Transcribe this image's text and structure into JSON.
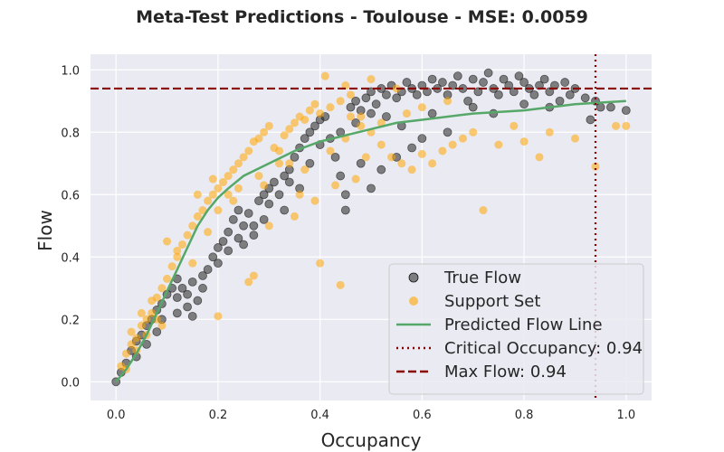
{
  "chart_data": {
    "type": "scatter",
    "title": "Meta-Test Predictions - Toulouse - MSE: 0.0059",
    "xlabel": "Occupancy",
    "ylabel": "Flow",
    "xlim": [
      -0.05,
      1.05
    ],
    "ylim": [
      -0.06,
      1.05
    ],
    "xticks": [
      0.0,
      0.2,
      0.4,
      0.6,
      0.8,
      1.0
    ],
    "yticks": [
      0.0,
      0.2,
      0.4,
      0.6,
      0.8,
      1.0
    ],
    "xtick_labels": [
      "0.0",
      "0.2",
      "0.4",
      "0.6",
      "0.8",
      "1.0"
    ],
    "ytick_labels": [
      "0.0",
      "0.2",
      "0.4",
      "0.6",
      "0.8",
      "1.0"
    ],
    "grid": true,
    "legend_position": "lower-right",
    "series": [
      {
        "name": "True Flow",
        "kind": "scatter",
        "color": "#333333",
        "points": [
          [
            0.0,
            0.0
          ],
          [
            0.01,
            0.03
          ],
          [
            0.02,
            0.06
          ],
          [
            0.03,
            0.1
          ],
          [
            0.04,
            0.13
          ],
          [
            0.05,
            0.15
          ],
          [
            0.06,
            0.18
          ],
          [
            0.07,
            0.2
          ],
          [
            0.08,
            0.23
          ],
          [
            0.09,
            0.25
          ],
          [
            0.1,
            0.28
          ],
          [
            0.11,
            0.3
          ],
          [
            0.12,
            0.33
          ],
          [
            0.13,
            0.3
          ],
          [
            0.14,
            0.28
          ],
          [
            0.15,
            0.32
          ],
          [
            0.16,
            0.26
          ],
          [
            0.17,
            0.3
          ],
          [
            0.14,
            0.24
          ],
          [
            0.12,
            0.27
          ],
          [
            0.18,
            0.36
          ],
          [
            0.19,
            0.4
          ],
          [
            0.2,
            0.43
          ],
          [
            0.21,
            0.45
          ],
          [
            0.22,
            0.48
          ],
          [
            0.23,
            0.52
          ],
          [
            0.24,
            0.55
          ],
          [
            0.25,
            0.5
          ],
          [
            0.26,
            0.54
          ],
          [
            0.27,
            0.47
          ],
          [
            0.28,
            0.58
          ],
          [
            0.29,
            0.6
          ],
          [
            0.3,
            0.62
          ],
          [
            0.31,
            0.64
          ],
          [
            0.32,
            0.6
          ],
          [
            0.33,
            0.66
          ],
          [
            0.34,
            0.68
          ],
          [
            0.35,
            0.72
          ],
          [
            0.36,
            0.75
          ],
          [
            0.37,
            0.78
          ],
          [
            0.38,
            0.8
          ],
          [
            0.39,
            0.82
          ],
          [
            0.4,
            0.84
          ],
          [
            0.41,
            0.85
          ],
          [
            0.42,
            0.78
          ],
          [
            0.43,
            0.72
          ],
          [
            0.44,
            0.66
          ],
          [
            0.45,
            0.6
          ],
          [
            0.46,
            0.88
          ],
          [
            0.47,
            0.9
          ],
          [
            0.48,
            0.87
          ],
          [
            0.49,
            0.91
          ],
          [
            0.5,
            0.93
          ],
          [
            0.51,
            0.89
          ],
          [
            0.52,
            0.94
          ],
          [
            0.53,
            0.92
          ],
          [
            0.54,
            0.95
          ],
          [
            0.55,
            0.91
          ],
          [
            0.56,
            0.93
          ],
          [
            0.57,
            0.96
          ],
          [
            0.58,
            0.94
          ],
          [
            0.59,
            0.92
          ],
          [
            0.6,
            0.95
          ],
          [
            0.61,
            0.93
          ],
          [
            0.62,
            0.97
          ],
          [
            0.63,
            0.94
          ],
          [
            0.64,
            0.96
          ],
          [
            0.65,
            0.92
          ],
          [
            0.66,
            0.95
          ],
          [
            0.67,
            0.98
          ],
          [
            0.68,
            0.94
          ],
          [
            0.69,
            0.9
          ],
          [
            0.7,
            0.97
          ],
          [
            0.71,
            0.93
          ],
          [
            0.72,
            0.96
          ],
          [
            0.73,
            0.99
          ],
          [
            0.74,
            0.94
          ],
          [
            0.75,
            0.92
          ],
          [
            0.76,
            0.97
          ],
          [
            0.77,
            0.95
          ],
          [
            0.78,
            0.93
          ],
          [
            0.79,
            0.98
          ],
          [
            0.8,
            0.96
          ],
          [
            0.81,
            0.94
          ],
          [
            0.82,
            0.92
          ],
          [
            0.83,
            0.95
          ],
          [
            0.84,
            0.97
          ],
          [
            0.85,
            0.93
          ],
          [
            0.86,
            0.95
          ],
          [
            0.87,
            0.9
          ],
          [
            0.88,
            0.96
          ],
          [
            0.89,
            0.92
          ],
          [
            0.9,
            0.94
          ],
          [
            0.92,
            0.91
          ],
          [
            0.94,
            0.9
          ],
          [
            0.95,
            0.88
          ],
          [
            0.97,
            0.88
          ],
          [
            1.0,
            0.87
          ],
          [
            0.93,
            0.84
          ],
          [
            0.6,
            0.78
          ],
          [
            0.65,
            0.8
          ],
          [
            0.58,
            0.75
          ],
          [
            0.48,
            0.7
          ],
          [
            0.52,
            0.68
          ],
          [
            0.45,
            0.55
          ],
          [
            0.5,
            0.62
          ],
          [
            0.55,
            0.72
          ],
          [
            0.25,
            0.44
          ],
          [
            0.2,
            0.38
          ],
          [
            0.27,
            0.5
          ],
          [
            0.33,
            0.55
          ],
          [
            0.36,
            0.62
          ],
          [
            0.29,
            0.52
          ],
          [
            0.12,
            0.22
          ],
          [
            0.06,
            0.12
          ],
          [
            0.04,
            0.08
          ],
          [
            0.08,
            0.16
          ],
          [
            0.09,
            0.2
          ],
          [
            0.15,
            0.21
          ],
          [
            0.17,
            0.34
          ],
          [
            0.22,
            0.42
          ],
          [
            0.24,
            0.46
          ],
          [
            0.3,
            0.57
          ],
          [
            0.34,
            0.64
          ],
          [
            0.38,
            0.7
          ],
          [
            0.4,
            0.76
          ],
          [
            0.44,
            0.8
          ],
          [
            0.47,
            0.83
          ],
          [
            0.5,
            0.86
          ],
          [
            0.53,
            0.85
          ],
          [
            0.56,
            0.82
          ],
          [
            0.62,
            0.86
          ],
          [
            0.7,
            0.88
          ],
          [
            0.74,
            0.86
          ],
          [
            0.8,
            0.89
          ],
          [
            0.85,
            0.88
          ]
        ]
      },
      {
        "name": "Support Set",
        "kind": "scatter",
        "color": "#ffa500",
        "points": [
          [
            0.01,
            0.05
          ],
          [
            0.02,
            0.09
          ],
          [
            0.03,
            0.12
          ],
          [
            0.04,
            0.14
          ],
          [
            0.05,
            0.18
          ],
          [
            0.06,
            0.2
          ],
          [
            0.07,
            0.22
          ],
          [
            0.08,
            0.27
          ],
          [
            0.09,
            0.3
          ],
          [
            0.1,
            0.33
          ],
          [
            0.11,
            0.37
          ],
          [
            0.12,
            0.4
          ],
          [
            0.13,
            0.44
          ],
          [
            0.14,
            0.47
          ],
          [
            0.15,
            0.5
          ],
          [
            0.16,
            0.53
          ],
          [
            0.17,
            0.55
          ],
          [
            0.18,
            0.58
          ],
          [
            0.19,
            0.6
          ],
          [
            0.2,
            0.62
          ],
          [
            0.21,
            0.64
          ],
          [
            0.22,
            0.66
          ],
          [
            0.23,
            0.68
          ],
          [
            0.24,
            0.7
          ],
          [
            0.25,
            0.72
          ],
          [
            0.26,
            0.74
          ],
          [
            0.27,
            0.77
          ],
          [
            0.28,
            0.78
          ],
          [
            0.29,
            0.8
          ],
          [
            0.3,
            0.82
          ],
          [
            0.31,
            0.75
          ],
          [
            0.32,
            0.7
          ],
          [
            0.33,
            0.79
          ],
          [
            0.34,
            0.81
          ],
          [
            0.35,
            0.83
          ],
          [
            0.36,
            0.85
          ],
          [
            0.37,
            0.84
          ],
          [
            0.38,
            0.87
          ],
          [
            0.39,
            0.89
          ],
          [
            0.4,
            0.86
          ],
          [
            0.42,
            0.88
          ],
          [
            0.44,
            0.9
          ],
          [
            0.46,
            0.85
          ],
          [
            0.48,
            0.82
          ],
          [
            0.5,
            0.8
          ],
          [
            0.52,
            0.76
          ],
          [
            0.54,
            0.72
          ],
          [
            0.56,
            0.7
          ],
          [
            0.58,
            0.68
          ],
          [
            0.6,
            0.73
          ],
          [
            0.62,
            0.7
          ],
          [
            0.64,
            0.74
          ],
          [
            0.66,
            0.76
          ],
          [
            0.68,
            0.78
          ],
          [
            0.7,
            0.8
          ],
          [
            0.72,
            0.55
          ],
          [
            0.75,
            0.76
          ],
          [
            0.78,
            0.82
          ],
          [
            0.8,
            0.77
          ],
          [
            0.83,
            0.72
          ],
          [
            0.85,
            0.8
          ],
          [
            0.9,
            0.78
          ],
          [
            0.94,
            0.69
          ],
          [
            0.98,
            0.82
          ],
          [
            1.0,
            0.82
          ],
          [
            0.44,
            0.31
          ],
          [
            0.4,
            0.38
          ],
          [
            0.35,
            0.53
          ],
          [
            0.2,
            0.21
          ],
          [
            0.26,
            0.32
          ],
          [
            0.27,
            0.34
          ],
          [
            0.3,
            0.5
          ],
          [
            0.36,
            0.6
          ],
          [
            0.39,
            0.58
          ],
          [
            0.43,
            0.63
          ],
          [
            0.47,
            0.65
          ],
          [
            0.49,
            0.72
          ],
          [
            0.41,
            0.98
          ],
          [
            0.45,
            0.95
          ],
          [
            0.46,
            0.92
          ],
          [
            0.5,
            0.97
          ],
          [
            0.55,
            0.94
          ],
          [
            0.6,
            0.88
          ],
          [
            0.65,
            0.9
          ],
          [
            0.1,
            0.45
          ],
          [
            0.12,
            0.42
          ],
          [
            0.15,
            0.38
          ],
          [
            0.18,
            0.48
          ],
          [
            0.2,
            0.55
          ],
          [
            0.22,
            0.6
          ],
          [
            0.24,
            0.62
          ],
          [
            0.28,
            0.66
          ],
          [
            0.32,
            0.74
          ],
          [
            0.34,
            0.7
          ],
          [
            0.37,
            0.68
          ],
          [
            0.42,
            0.74
          ],
          [
            0.45,
            0.78
          ],
          [
            0.48,
            0.85
          ],
          [
            0.52,
            0.83
          ],
          [
            0.57,
            0.86
          ],
          [
            0.03,
            0.16
          ],
          [
            0.05,
            0.22
          ],
          [
            0.07,
            0.26
          ],
          [
            0.08,
            0.2
          ],
          [
            0.06,
            0.15
          ],
          [
            0.09,
            0.18
          ],
          [
            0.02,
            0.04
          ],
          [
            0.04,
            0.1
          ],
          [
            0.16,
            0.6
          ],
          [
            0.19,
            0.65
          ],
          [
            0.23,
            0.58
          ],
          [
            0.29,
            0.63
          ]
        ]
      },
      {
        "name": "Predicted Flow Line",
        "kind": "line",
        "color": "#55a868",
        "points": [
          [
            0.0,
            0.0
          ],
          [
            0.02,
            0.04
          ],
          [
            0.04,
            0.09
          ],
          [
            0.06,
            0.15
          ],
          [
            0.08,
            0.22
          ],
          [
            0.1,
            0.29
          ],
          [
            0.12,
            0.36
          ],
          [
            0.14,
            0.43
          ],
          [
            0.16,
            0.5
          ],
          [
            0.18,
            0.55
          ],
          [
            0.2,
            0.59
          ],
          [
            0.22,
            0.62
          ],
          [
            0.25,
            0.66
          ],
          [
            0.3,
            0.7
          ],
          [
            0.35,
            0.74
          ],
          [
            0.4,
            0.77
          ],
          [
            0.45,
            0.79
          ],
          [
            0.5,
            0.81
          ],
          [
            0.55,
            0.83
          ],
          [
            0.6,
            0.84
          ],
          [
            0.7,
            0.86
          ],
          [
            0.8,
            0.87
          ],
          [
            0.9,
            0.89
          ],
          [
            1.0,
            0.9
          ]
        ]
      }
    ],
    "reference_lines": [
      {
        "name": "Critical Occupancy: 0.94",
        "orientation": "vertical",
        "value": 0.94,
        "style": "dotted",
        "color": "#8b0000"
      },
      {
        "name": "Max Flow: 0.94",
        "orientation": "horizontal",
        "value": 0.94,
        "style": "dashed",
        "color": "#8b0000"
      }
    ]
  },
  "colors": {
    "plot_background": "#eaeaf2",
    "grid": "#ffffff"
  }
}
